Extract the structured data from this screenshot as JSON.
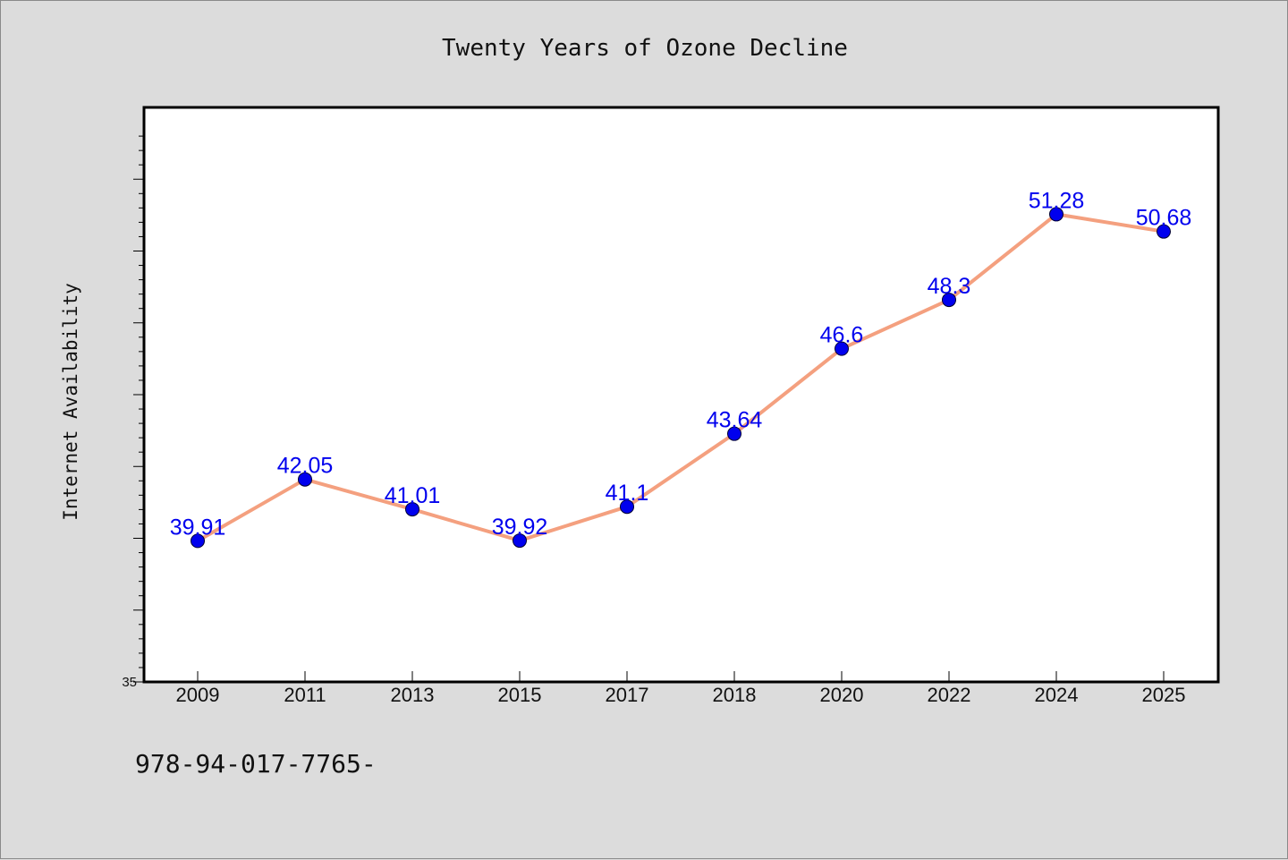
{
  "chart_data": {
    "type": "line",
    "title": "Twenty Years of Ozone Decline",
    "xlabel": "",
    "ylabel": "Internet Availability",
    "categories": [
      "2009",
      "2011",
      "2013",
      "2015",
      "2017",
      "2018",
      "2020",
      "2022",
      "2024",
      "2025"
    ],
    "series": [
      {
        "values": [
          39.91,
          42.05,
          41.01,
          39.92,
          41.1,
          43.64,
          46.6,
          48.3,
          51.28,
          50.68
        ],
        "labels": [
          "39.91",
          "42.05",
          "41.01",
          "39.92",
          "41.1",
          "43.64",
          "46.6",
          "48.3",
          "51.28",
          "50.68"
        ],
        "line_color": "#f4a07f",
        "marker_color": "#0000ee",
        "label_color": "#0000ee"
      }
    ],
    "ylim": [
      35,
      55
    ],
    "yticks_labeled": [
      "35"
    ],
    "grid": false,
    "legend": "none",
    "background_color": "#dcdcdc",
    "plot_background_color": "#ffffff"
  },
  "footnote": "978-94-017-7765-"
}
